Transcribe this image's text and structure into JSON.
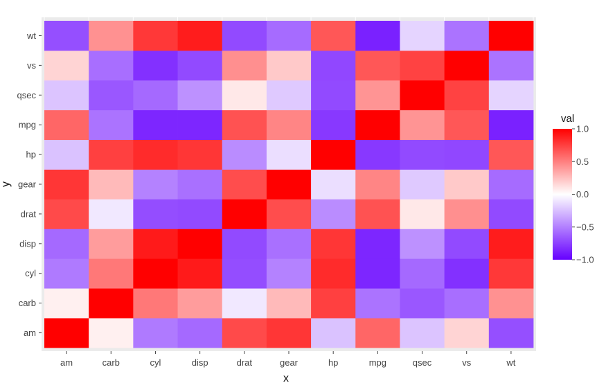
{
  "chart_data": {
    "type": "heatmap",
    "title": "",
    "xlabel": "x",
    "ylabel": "y",
    "x_categories": [
      "am",
      "carb",
      "cyl",
      "disp",
      "drat",
      "gear",
      "hp",
      "mpg",
      "qsec",
      "vs",
      "wt"
    ],
    "y_categories": [
      "am",
      "carb",
      "cyl",
      "disp",
      "drat",
      "gear",
      "hp",
      "mpg",
      "qsec",
      "vs",
      "wt"
    ],
    "values": [
      [
        1.0,
        0.06,
        -0.52,
        -0.59,
        0.71,
        0.79,
        -0.24,
        0.6,
        -0.23,
        0.17,
        -0.69
      ],
      [
        0.06,
        1.0,
        0.53,
        0.39,
        -0.09,
        0.27,
        0.75,
        -0.55,
        -0.66,
        -0.57,
        0.43
      ],
      [
        -0.52,
        0.53,
        1.0,
        0.9,
        -0.7,
        -0.49,
        0.83,
        -0.85,
        -0.59,
        -0.81,
        0.78
      ],
      [
        -0.59,
        0.39,
        0.9,
        1.0,
        -0.71,
        -0.56,
        0.79,
        -0.85,
        -0.43,
        -0.71,
        0.89
      ],
      [
        0.71,
        -0.09,
        -0.7,
        -0.71,
        1.0,
        0.7,
        -0.45,
        0.68,
        0.09,
        0.44,
        -0.71
      ],
      [
        0.79,
        0.27,
        -0.49,
        -0.56,
        0.7,
        1.0,
        -0.13,
        0.48,
        -0.21,
        0.21,
        -0.58
      ],
      [
        -0.24,
        0.75,
        0.83,
        0.79,
        -0.45,
        -0.13,
        1.0,
        -0.78,
        -0.71,
        -0.72,
        0.66
      ],
      [
        0.6,
        -0.55,
        -0.85,
        -0.85,
        0.68,
        0.48,
        -0.78,
        1.0,
        0.42,
        0.66,
        -0.87
      ],
      [
        -0.23,
        -0.66,
        -0.59,
        -0.43,
        0.09,
        -0.21,
        -0.71,
        0.42,
        1.0,
        0.74,
        -0.17
      ],
      [
        0.17,
        -0.57,
        -0.81,
        -0.71,
        0.44,
        0.21,
        -0.72,
        0.66,
        0.74,
        1.0,
        -0.55
      ],
      [
        -0.69,
        0.43,
        0.78,
        0.89,
        -0.71,
        -0.58,
        0.66,
        -0.87,
        -0.17,
        -0.55,
        1.0
      ]
    ],
    "colorscale": {
      "min": -1.0,
      "max": 1.0,
      "low_color": "#6600ff",
      "mid_color": "#ffffff",
      "high_color": "#ff0000"
    },
    "legend": {
      "title": "val",
      "position": "right",
      "ticks": [
        1.0,
        0.5,
        0.0,
        -0.5,
        -1.0
      ],
      "tick_labels": [
        "1.0",
        "0.5",
        "0.0",
        "−0.5",
        "−1.0"
      ]
    },
    "grid": true,
    "panel_background": "#ebebeb"
  }
}
